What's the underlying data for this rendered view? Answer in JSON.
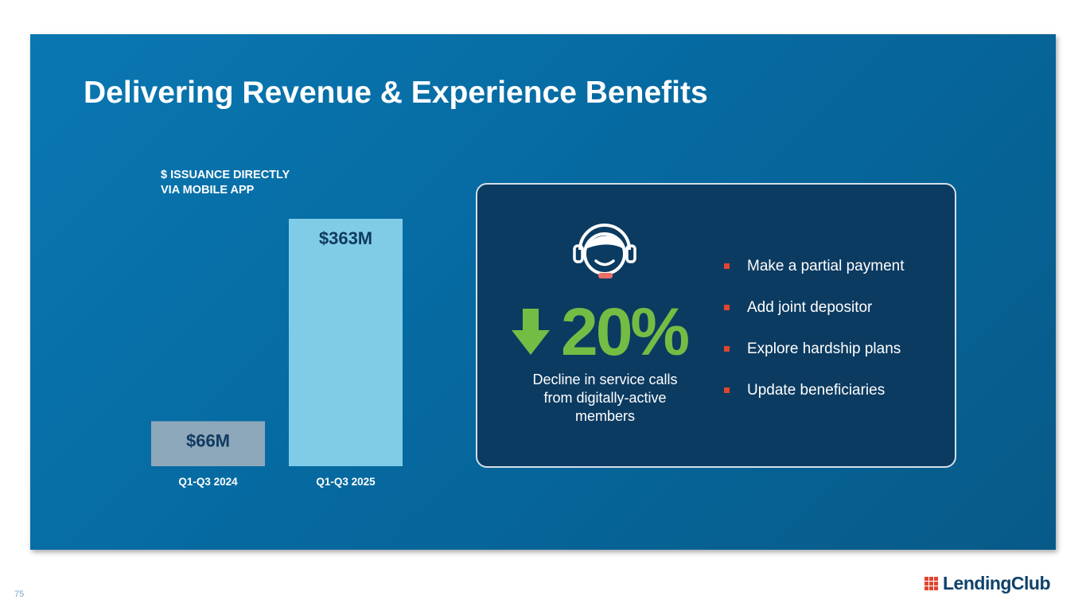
{
  "slide": {
    "title": "Delivering Revenue & Experience Benefits",
    "page_number": "75"
  },
  "chart_label": [
    "$ ISSUANCE DIRECTLY",
    "VIA MOBILE APP"
  ],
  "chart_data": {
    "type": "bar",
    "title": "$ ISSUANCE DIRECTLY VIA MOBILE APP",
    "categories": [
      "Q1-Q3 2024",
      "Q1-Q3 2025"
    ],
    "values": [
      66,
      363
    ],
    "value_labels": [
      "$66M",
      "$363M"
    ],
    "unit": "$M",
    "colors": [
      "#8ea8bb",
      "#80cce7"
    ],
    "label_color": "#0f3a5f",
    "xlabel": "",
    "ylabel": "",
    "ylim": [
      0,
      363
    ]
  },
  "callout": {
    "icon": "customer-service-headset-icon",
    "arrow": "down-arrow-icon",
    "stat_value": "20%",
    "stat_description": "Decline in service calls from digitally-active members",
    "stat_color": "#74bd44",
    "bullets": [
      "Make a partial payment",
      "Add joint depositor",
      "Explore hardship plans",
      "Update beneficiaries"
    ],
    "bullet_color": "#e0452f"
  },
  "logo": {
    "text": "LendingClub",
    "icon": "lendingclub-grid-icon"
  }
}
